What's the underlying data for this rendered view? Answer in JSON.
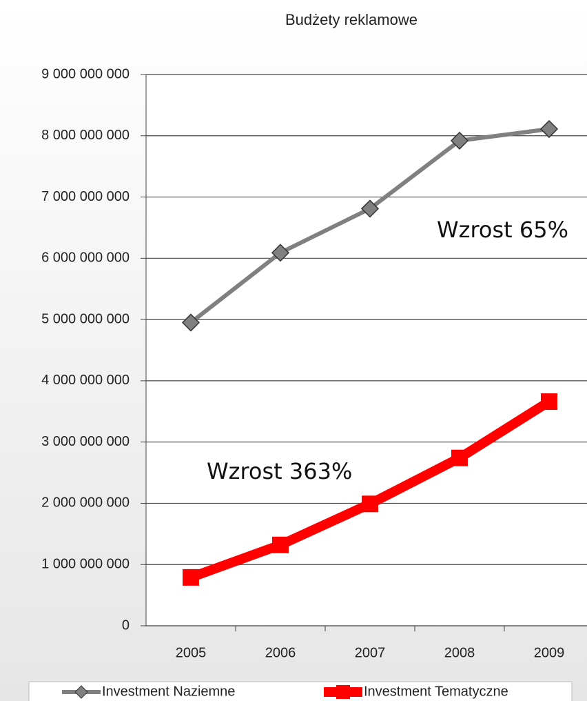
{
  "chart_data": {
    "type": "line",
    "title": "Budżety reklamowe",
    "categories": [
      "2005",
      "2006",
      "2007",
      "2008",
      "2009"
    ],
    "series": [
      {
        "name": "Investment Naziemne",
        "color": "#808080",
        "marker": "diamond",
        "values": [
          4950000000,
          6090000000,
          6810000000,
          7920000000,
          8110000000
        ]
      },
      {
        "name": "Investment Tematyczne",
        "color": "#ff0000",
        "marker": "square",
        "values": [
          790000000,
          1320000000,
          1990000000,
          2740000000,
          3660000000
        ]
      }
    ],
    "ylim": [
      0,
      9000000000
    ],
    "yticks": [
      0,
      {
        "value": 1000000000,
        "label": "1 000 000 000"
      },
      {
        "value": 2000000000,
        "label": "2 000 000 000"
      },
      {
        "value": 3000000000,
        "label": "3 000 000 000"
      },
      {
        "value": 4000000000,
        "label": "4 000 000 000"
      },
      {
        "value": 5000000000,
        "label": "5 000 000 000"
      },
      {
        "value": 6000000000,
        "label": "6 000 000 000"
      },
      {
        "value": 7000000000,
        "label": "7 000 000 000"
      },
      {
        "value": 8000000000,
        "label": "8 000 000 000"
      },
      {
        "value": 9000000000,
        "label": "9 000 000 000"
      }
    ],
    "grid": true,
    "annotations": [
      "Wzrost 65%",
      "Wzrost 363%"
    ],
    "legend": "bottom"
  }
}
